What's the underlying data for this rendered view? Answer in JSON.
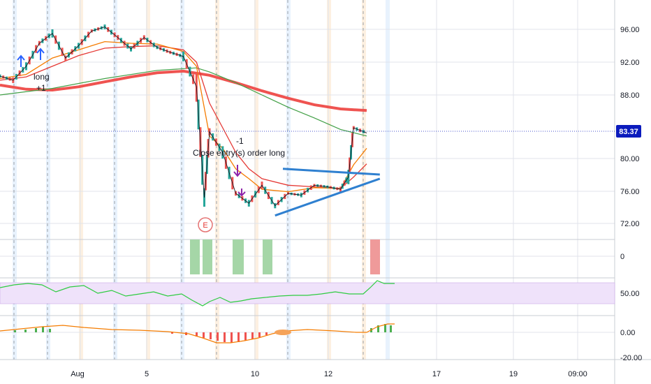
{
  "chart_data": {
    "type": "line",
    "chart_kind": "candlestick price chart with indicator panes",
    "x_ticks": [
      "Aug",
      "5",
      "10",
      "12",
      "17",
      "19",
      "09:00"
    ],
    "price_axis": {
      "ticks": [
        "96.00",
        "92.00",
        "88.00",
        "80.00",
        "76.00",
        "72.00"
      ],
      "current_price": "83.37",
      "current_price_color": "#0b1bbd"
    },
    "pane_axes": {
      "signal_pane_tick": "0",
      "oscillator_pane_tick": "50.00",
      "histogram_pane_ticks": [
        "0.00",
        "-20.00"
      ]
    },
    "annotations": {
      "entry_label": "long",
      "entry_qty": "+1",
      "exit_label": "Close entry(s) order long",
      "exit_qty": "-1",
      "event_marker": "E"
    },
    "price_series": [
      {
        "x": 0,
        "y": 90.3
      },
      {
        "x": 0.5,
        "y": 89.8
      },
      {
        "x": 1,
        "y": 91.5
      },
      {
        "x": 1.5,
        "y": 94.3
      },
      {
        "x": 2,
        "y": 95.5
      },
      {
        "x": 2.5,
        "y": 92.5
      },
      {
        "x": 3,
        "y": 94.0
      },
      {
        "x": 3.5,
        "y": 95.8
      },
      {
        "x": 4,
        "y": 96.3
      },
      {
        "x": 4.5,
        "y": 95.0
      },
      {
        "x": 5,
        "y": 93.6
      },
      {
        "x": 5.5,
        "y": 95.0
      },
      {
        "x": 6,
        "y": 93.8
      },
      {
        "x": 6.5,
        "y": 93.2
      },
      {
        "x": 7,
        "y": 92.7
      },
      {
        "x": 7.5,
        "y": 89.0
      },
      {
        "x": 7.8,
        "y": 75.5
      },
      {
        "x": 8,
        "y": 83.5
      },
      {
        "x": 8.5,
        "y": 81.0
      },
      {
        "x": 9,
        "y": 76.0
      },
      {
        "x": 9.5,
        "y": 74.8
      },
      {
        "x": 10,
        "y": 77.0
      },
      {
        "x": 10.5,
        "y": 74.5
      },
      {
        "x": 11,
        "y": 76.0
      },
      {
        "x": 11.5,
        "y": 75.8
      },
      {
        "x": 12,
        "y": 77.0
      },
      {
        "x": 12.5,
        "y": 76.8
      },
      {
        "x": 13,
        "y": 76.5
      },
      {
        "x": 13.3,
        "y": 78.0
      },
      {
        "x": 13.5,
        "y": 84.0
      },
      {
        "x": 14,
        "y": 83.37
      }
    ],
    "ema_fast": [
      {
        "x": 0,
        "y": 90.0
      },
      {
        "x": 1,
        "y": 90.5
      },
      {
        "x": 2,
        "y": 92.5
      },
      {
        "x": 3,
        "y": 93.5
      },
      {
        "x": 4,
        "y": 94.5
      },
      {
        "x": 5,
        "y": 94.3
      },
      {
        "x": 6,
        "y": 94.2
      },
      {
        "x": 7,
        "y": 93.3
      },
      {
        "x": 7.5,
        "y": 91.5
      },
      {
        "x": 8,
        "y": 83.0
      },
      {
        "x": 8.5,
        "y": 81.5
      },
      {
        "x": 9,
        "y": 79.0
      },
      {
        "x": 9.5,
        "y": 77.8
      },
      {
        "x": 10,
        "y": 76.5
      },
      {
        "x": 11,
        "y": 76.2
      },
      {
        "x": 12,
        "y": 76.7
      },
      {
        "x": 13,
        "y": 76.6
      },
      {
        "x": 13.5,
        "y": 79.5
      },
      {
        "x": 14,
        "y": 81.5
      }
    ],
    "ema_mid": [
      {
        "x": 0,
        "y": 89.8
      },
      {
        "x": 1,
        "y": 90.2
      },
      {
        "x": 2,
        "y": 91.5
      },
      {
        "x": 3,
        "y": 92.8
      },
      {
        "x": 4,
        "y": 93.7
      },
      {
        "x": 5,
        "y": 93.9
      },
      {
        "x": 6,
        "y": 94.0
      },
      {
        "x": 7,
        "y": 93.5
      },
      {
        "x": 7.5,
        "y": 92.0
      },
      {
        "x": 8,
        "y": 87.0
      },
      {
        "x": 8.5,
        "y": 84.0
      },
      {
        "x": 9,
        "y": 81.0
      },
      {
        "x": 9.5,
        "y": 79.0
      },
      {
        "x": 10,
        "y": 77.8
      },
      {
        "x": 11,
        "y": 77.0
      },
      {
        "x": 12,
        "y": 76.8
      },
      {
        "x": 13,
        "y": 76.6
      },
      {
        "x": 13.5,
        "y": 78.0
      },
      {
        "x": 14,
        "y": 79.6
      }
    ],
    "ma_green": [
      {
        "x": 0,
        "y": 88.0
      },
      {
        "x": 2,
        "y": 88.8
      },
      {
        "x": 4,
        "y": 90.0
      },
      {
        "x": 6,
        "y": 91.0
      },
      {
        "x": 7.5,
        "y": 91.3
      },
      {
        "x": 8,
        "y": 90.8
      },
      {
        "x": 9,
        "y": 89.5
      },
      {
        "x": 10,
        "y": 88.0
      },
      {
        "x": 11,
        "y": 86.5
      },
      {
        "x": 12,
        "y": 85.2
      },
      {
        "x": 13,
        "y": 83.8
      },
      {
        "x": 14,
        "y": 83.0
      }
    ],
    "ma_long": [
      {
        "x": 0,
        "y": 89.2
      },
      {
        "x": 1,
        "y": 88.7
      },
      {
        "x": 2,
        "y": 88.6
      },
      {
        "x": 3,
        "y": 89.0
      },
      {
        "x": 4,
        "y": 89.6
      },
      {
        "x": 5,
        "y": 90.2
      },
      {
        "x": 6,
        "y": 90.7
      },
      {
        "x": 7,
        "y": 90.9
      },
      {
        "x": 8,
        "y": 90.4
      },
      {
        "x": 9,
        "y": 89.5
      },
      {
        "x": 10,
        "y": 88.5
      },
      {
        "x": 11,
        "y": 87.6
      },
      {
        "x": 12,
        "y": 86.8
      },
      {
        "x": 13,
        "y": 86.3
      },
      {
        "x": 14,
        "y": 86.1
      }
    ],
    "triangle_upper": [
      {
        "x": 10.8,
        "y": 79.0
      },
      {
        "x": 14.5,
        "y": 78.3
      }
    ],
    "triangle_lower": [
      {
        "x": 10.5,
        "y": 73.3
      },
      {
        "x": 14.5,
        "y": 77.8
      }
    ],
    "colors": {
      "price": "#131722",
      "ema_fast": "#f57c00",
      "ema_mid": "#e53935",
      "ma_green": "#43a047",
      "ma_long": "#ef5350",
      "trendline": "#2f80d0",
      "oscillator": "#2ecc40",
      "oscillator_band": "#e6d4f5",
      "histogram_up": "#4caf50",
      "histogram_down": "#ef5350",
      "signal_green": "#a5d6a7",
      "signal_red": "#ef9a9a"
    }
  }
}
